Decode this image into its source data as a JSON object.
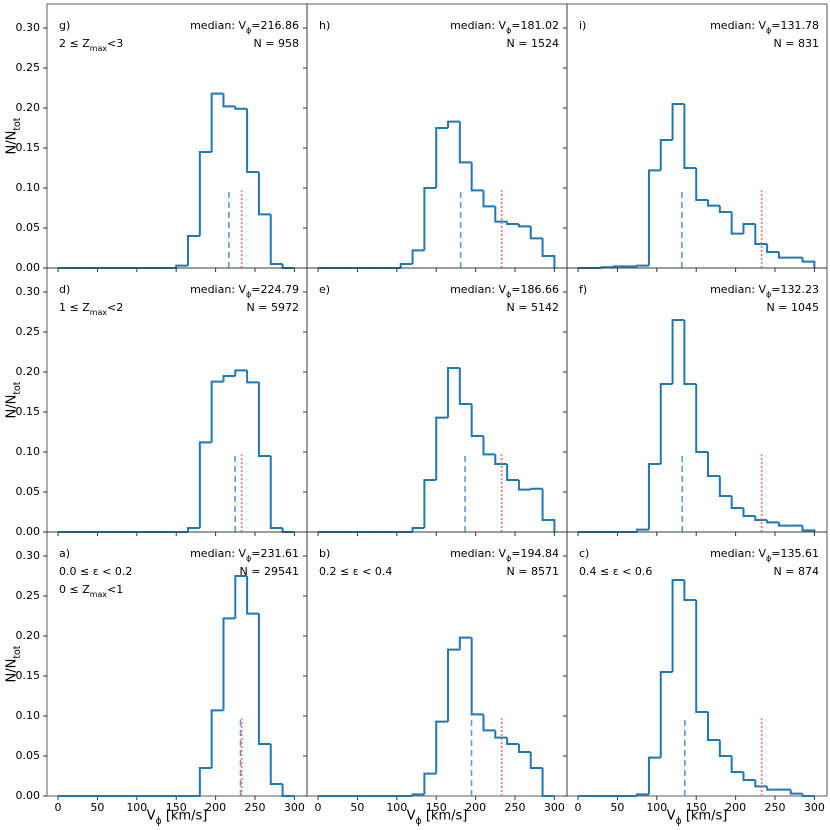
{
  "chart_data": [
    {
      "type": "histogram",
      "panel_label": "g)",
      "selection": [
        "2 ≤ Zmax<3"
      ],
      "median_label": "median: Vϕ=",
      "median": 216.86,
      "n_label": "N = ",
      "n": 958,
      "bins": [
        0,
        15,
        30,
        45,
        60,
        75,
        90,
        105,
        120,
        135,
        150,
        165,
        180,
        195,
        210,
        225,
        240,
        255,
        270,
        285,
        300
      ],
      "values": [
        0,
        0,
        0,
        0,
        0,
        0,
        0,
        0,
        0,
        0,
        0.003,
        0.04,
        0.145,
        0.218,
        0.202,
        0.199,
        0.12,
        0.067,
        0.005,
        0
      ],
      "color": "#1f77b4",
      "median_color": "#5b9bd5",
      "reference_x": 233,
      "reference_color": "#ff6b6b",
      "line_top": 0.097,
      "xlim": [
        -14,
        316
      ],
      "ylim": [
        0,
        0.33
      ],
      "xticks": [
        0,
        50,
        100,
        150,
        200,
        250,
        300
      ],
      "yticks": [
        {
          "value": 0,
          "label": "0.00"
        },
        {
          "value": 0.05,
          "label": "0.05"
        },
        {
          "value": 0.1,
          "label": "0.10"
        },
        {
          "value": 0.15,
          "label": "0.15"
        },
        {
          "value": 0.2,
          "label": "0.20"
        },
        {
          "value": 0.25,
          "label": "0.25"
        },
        {
          "value": 0.3,
          "label": "0.30"
        }
      ],
      "show_xtick_labels": false,
      "show_ytick_labels": true,
      "ylabel": "N/Ntot"
    },
    {
      "type": "histogram",
      "panel_label": "h)",
      "median_label": "median: Vϕ=",
      "median": 181.02,
      "n_label": "N = ",
      "n": 1524,
      "bins": [
        0,
        15,
        30,
        45,
        60,
        75,
        90,
        105,
        120,
        135,
        150,
        165,
        180,
        195,
        210,
        225,
        240,
        255,
        270,
        285,
        300
      ],
      "values": [
        0,
        0,
        0,
        0,
        0,
        0,
        0,
        0.005,
        0.022,
        0.1,
        0.175,
        0.183,
        0.132,
        0.097,
        0.077,
        0.058,
        0.055,
        0.052,
        0.037,
        0.015
      ],
      "color": "#1f77b4",
      "median_color": "#5b9bd5",
      "reference_x": 233,
      "reference_color": "#ff6b6b",
      "line_top": 0.097,
      "xlim": [
        -14,
        316
      ],
      "ylim": [
        0,
        0.33
      ],
      "xticks": [
        0,
        50,
        100,
        150,
        200,
        250,
        300
      ],
      "yticks": [
        0,
        0.05,
        0.1,
        0.15,
        0.2,
        0.25,
        0.3
      ],
      "show_xtick_labels": false,
      "show_ytick_labels": false
    },
    {
      "type": "histogram",
      "panel_label": "i)",
      "median_label": "median: Vϕ=",
      "median": 131.78,
      "n_label": "N = ",
      "n": 831,
      "bins": [
        0,
        15,
        30,
        45,
        60,
        75,
        90,
        105,
        120,
        135,
        150,
        165,
        180,
        195,
        210,
        225,
        240,
        255,
        270,
        285,
        300
      ],
      "values": [
        0,
        0,
        0.001,
        0.002,
        0.002,
        0.003,
        0.122,
        0.16,
        0.205,
        0.125,
        0.085,
        0.078,
        0.07,
        0.043,
        0.055,
        0.03,
        0.02,
        0.013,
        0.013,
        0.008
      ],
      "color": "#1f77b4",
      "median_color": "#5b9bd5",
      "reference_x": 233,
      "reference_color": "#ff6b6b",
      "line_top": 0.097,
      "xlim": [
        -14,
        316
      ],
      "ylim": [
        0,
        0.33
      ],
      "xticks": [
        0,
        50,
        100,
        150,
        200,
        250,
        300
      ],
      "yticks": [
        0,
        0.05,
        0.1,
        0.15,
        0.2,
        0.25,
        0.3
      ],
      "show_xtick_labels": false,
      "show_ytick_labels": false
    },
    {
      "type": "histogram",
      "panel_label": "d)",
      "selection": [
        "1 ≤ Zmax<2"
      ],
      "median_label": "median: Vϕ=",
      "median": 224.79,
      "n_label": "N = ",
      "n": 5972,
      "bins": [
        0,
        15,
        30,
        45,
        60,
        75,
        90,
        105,
        120,
        135,
        150,
        165,
        180,
        195,
        210,
        225,
        240,
        255,
        270,
        285,
        300
      ],
      "values": [
        0,
        0,
        0,
        0,
        0,
        0,
        0,
        0,
        0,
        0,
        0,
        0.005,
        0.112,
        0.188,
        0.195,
        0.202,
        0.187,
        0.095,
        0.005,
        0
      ],
      "color": "#1f77b4",
      "median_color": "#5b9bd5",
      "reference_x": 233,
      "reference_color": "#ff6b6b",
      "line_top": 0.097,
      "xlim": [
        -14,
        316
      ],
      "ylim": [
        0,
        0.33
      ],
      "xticks": [
        0,
        50,
        100,
        150,
        200,
        250,
        300
      ],
      "yticks": [
        {
          "value": 0,
          "label": "0.00"
        },
        {
          "value": 0.05,
          "label": "0.05"
        },
        {
          "value": 0.1,
          "label": "0.10"
        },
        {
          "value": 0.15,
          "label": "0.15"
        },
        {
          "value": 0.2,
          "label": "0.20"
        },
        {
          "value": 0.25,
          "label": "0.25"
        },
        {
          "value": 0.3,
          "label": "0.30"
        }
      ],
      "show_xtick_labels": false,
      "show_ytick_labels": true,
      "ylabel": "N/Ntot"
    },
    {
      "type": "histogram",
      "panel_label": "e)",
      "median_label": "median: Vϕ=",
      "median": 186.66,
      "n_label": "N = ",
      "n": 5142,
      "bins": [
        0,
        15,
        30,
        45,
        60,
        75,
        90,
        105,
        120,
        135,
        150,
        165,
        180,
        195,
        210,
        225,
        240,
        255,
        270,
        285,
        300
      ],
      "values": [
        0,
        0,
        0,
        0,
        0,
        0,
        0,
        0,
        0.005,
        0.065,
        0.143,
        0.205,
        0.16,
        0.12,
        0.097,
        0.085,
        0.065,
        0.053,
        0.054,
        0.015
      ],
      "color": "#1f77b4",
      "median_color": "#5b9bd5",
      "reference_x": 233,
      "reference_color": "#ff6b6b",
      "line_top": 0.097,
      "xlim": [
        -14,
        316
      ],
      "ylim": [
        0,
        0.33
      ],
      "xticks": [
        0,
        50,
        100,
        150,
        200,
        250,
        300
      ],
      "yticks": [
        0,
        0.05,
        0.1,
        0.15,
        0.2,
        0.25,
        0.3
      ],
      "show_xtick_labels": false,
      "show_ytick_labels": false
    },
    {
      "type": "histogram",
      "panel_label": "f)",
      "median_label": "median: Vϕ=",
      "median": 132.23,
      "n_label": "N = ",
      "n": 1045,
      "bins": [
        0,
        15,
        30,
        45,
        60,
        75,
        90,
        105,
        120,
        135,
        150,
        165,
        180,
        195,
        210,
        225,
        240,
        255,
        270,
        285,
        300
      ],
      "values": [
        0,
        0,
        0,
        0,
        0,
        0.003,
        0.085,
        0.185,
        0.265,
        0.185,
        0.1,
        0.07,
        0.045,
        0.03,
        0.02,
        0.015,
        0.012,
        0.008,
        0.008,
        0.002
      ],
      "color": "#1f77b4",
      "median_color": "#5b9bd5",
      "reference_x": 233,
      "reference_color": "#ff6b6b",
      "line_top": 0.097,
      "xlim": [
        -14,
        316
      ],
      "ylim": [
        0,
        0.33
      ],
      "xticks": [
        0,
        50,
        100,
        150,
        200,
        250,
        300
      ],
      "yticks": [
        0,
        0.05,
        0.1,
        0.15,
        0.2,
        0.25,
        0.3
      ],
      "show_xtick_labels": false,
      "show_ytick_labels": false
    },
    {
      "type": "histogram",
      "panel_label": "a)",
      "selection": [
        "0.0 ≤ ε < 0.2",
        "0 ≤ Zmax<1"
      ],
      "median_label": "median: Vϕ=",
      "median": 231.61,
      "n_label": "N = ",
      "n": 29541,
      "bins": [
        0,
        15,
        30,
        45,
        60,
        75,
        90,
        105,
        120,
        135,
        150,
        165,
        180,
        195,
        210,
        225,
        240,
        255,
        270,
        285,
        300
      ],
      "values": [
        0,
        0,
        0,
        0,
        0,
        0,
        0,
        0,
        0,
        0,
        0,
        0,
        0.035,
        0.107,
        0.222,
        0.275,
        0.228,
        0.065,
        0.015,
        0
      ],
      "color": "#1f77b4",
      "median_color": "#5b9bd5",
      "reference_x": 233,
      "reference_color": "#ff6b6b",
      "line_top": 0.097,
      "xlim": [
        -14,
        316
      ],
      "ylim": [
        0,
        0.33
      ],
      "xticks": [
        0,
        50,
        100,
        150,
        200,
        250,
        300
      ],
      "yticks": [
        {
          "value": 0,
          "label": "0.00"
        },
        {
          "value": 0.05,
          "label": "0.05"
        },
        {
          "value": 0.1,
          "label": "0.10"
        },
        {
          "value": 0.15,
          "label": "0.15"
        },
        {
          "value": 0.2,
          "label": "0.20"
        },
        {
          "value": 0.25,
          "label": "0.25"
        },
        {
          "value": 0.3,
          "label": "0.30"
        }
      ],
      "show_xtick_labels": true,
      "show_ytick_labels": true,
      "ylabel": "N/Ntot",
      "xlabel": "Vϕ [km/s]"
    },
    {
      "type": "histogram",
      "panel_label": "b)",
      "selection": [
        "0.2 ≤ ε < 0.4"
      ],
      "median_label": "median: Vϕ=",
      "median": 194.84,
      "n_label": "N = ",
      "n": 8571,
      "bins": [
        0,
        15,
        30,
        45,
        60,
        75,
        90,
        105,
        120,
        135,
        150,
        165,
        180,
        195,
        210,
        225,
        240,
        255,
        270,
        285,
        300
      ],
      "values": [
        0,
        0,
        0,
        0,
        0,
        0,
        0,
        0,
        0.002,
        0.028,
        0.093,
        0.183,
        0.198,
        0.102,
        0.082,
        0.073,
        0.065,
        0.055,
        0.035,
        0
      ],
      "color": "#1f77b4",
      "median_color": "#5b9bd5",
      "reference_x": 233,
      "reference_color": "#ff6b6b",
      "line_top": 0.097,
      "xlim": [
        -14,
        316
      ],
      "ylim": [
        0,
        0.33
      ],
      "xticks": [
        0,
        50,
        100,
        150,
        200,
        250,
        300
      ],
      "yticks": [
        0,
        0.05,
        0.1,
        0.15,
        0.2,
        0.25,
        0.3
      ],
      "show_xtick_labels": true,
      "show_ytick_labels": false,
      "xlabel": "Vϕ [km/s]"
    },
    {
      "type": "histogram",
      "panel_label": "c)",
      "selection": [
        "0.4 ≤ ε < 0.6"
      ],
      "median_label": "median: Vϕ=",
      "median": 135.61,
      "n_label": "N = ",
      "n": 874,
      "bins": [
        0,
        15,
        30,
        45,
        60,
        75,
        90,
        105,
        120,
        135,
        150,
        165,
        180,
        195,
        210,
        225,
        240,
        255,
        270,
        285,
        300
      ],
      "values": [
        0,
        0,
        0,
        0,
        0,
        0.002,
        0.048,
        0.155,
        0.27,
        0.245,
        0.105,
        0.07,
        0.05,
        0.03,
        0.02,
        0.012,
        0.008,
        0.008,
        0.003,
        0
      ],
      "color": "#1f77b4",
      "median_color": "#5b9bd5",
      "reference_x": 233,
      "reference_color": "#ff6b6b",
      "line_top": 0.097,
      "xlim": [
        -14,
        316
      ],
      "ylim": [
        0,
        0.33
      ],
      "xticks": [
        0,
        50,
        100,
        150,
        200,
        250,
        300
      ],
      "yticks": [
        0,
        0.05,
        0.1,
        0.15,
        0.2,
        0.25,
        0.3
      ],
      "show_xtick_labels": true,
      "show_ytick_labels": false,
      "xlabel": "Vϕ [km/s]"
    }
  ]
}
